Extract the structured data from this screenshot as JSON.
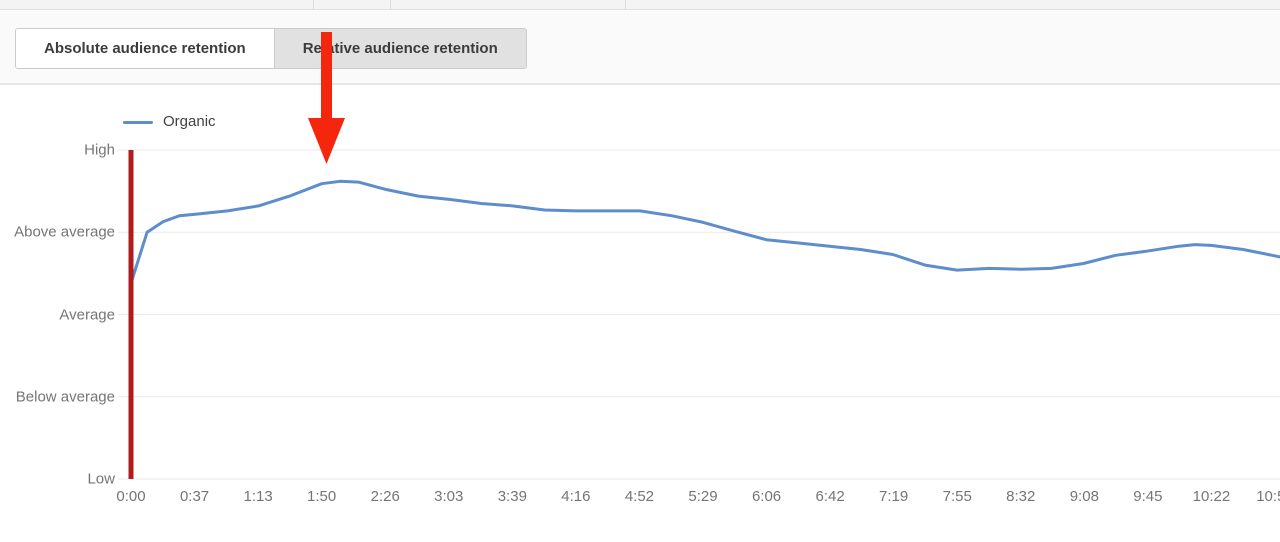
{
  "panel": {
    "tabs": [
      {
        "label": "Absolute audience retention",
        "selected": false
      },
      {
        "label": "Relative audience retention",
        "selected": true
      }
    ]
  },
  "legend": {
    "series_label": "Organic"
  },
  "chart_data": {
    "type": "line",
    "title": "Relative audience retention",
    "grid": true,
    "legend_position": "top-left",
    "y_tick_labels": [
      "High",
      "Above average",
      "Average",
      "Below average",
      "Low"
    ],
    "y_scale": {
      "Low": 0,
      "Below average": 1,
      "Average": 2,
      "Above average": 3,
      "High": 4
    },
    "x_tick_labels": [
      "0:00",
      "0:37",
      "1:13",
      "1:50",
      "2:26",
      "3:03",
      "3:39",
      "4:16",
      "4:52",
      "5:29",
      "6:06",
      "6:42",
      "7:19",
      "7:55",
      "8:32",
      "9:08",
      "9:45",
      "10:22",
      "10:58"
    ],
    "series": [
      {
        "name": "Organic",
        "color": "#5d8dca",
        "points": [
          [
            0.0,
            2.38
          ],
          [
            0.014,
            3.0
          ],
          [
            0.028,
            3.13
          ],
          [
            0.042,
            3.2
          ],
          [
            0.056,
            3.22
          ],
          [
            0.084,
            3.26
          ],
          [
            0.111,
            3.32
          ],
          [
            0.138,
            3.44
          ],
          [
            0.166,
            3.59
          ],
          [
            0.182,
            3.62
          ],
          [
            0.198,
            3.61
          ],
          [
            0.222,
            3.52
          ],
          [
            0.25,
            3.44
          ],
          [
            0.277,
            3.4
          ],
          [
            0.305,
            3.35
          ],
          [
            0.332,
            3.32
          ],
          [
            0.36,
            3.27
          ],
          [
            0.387,
            3.26
          ],
          [
            0.415,
            3.26
          ],
          [
            0.443,
            3.26
          ],
          [
            0.471,
            3.2
          ],
          [
            0.498,
            3.12
          ],
          [
            0.526,
            3.01
          ],
          [
            0.553,
            2.91
          ],
          [
            0.58,
            2.87
          ],
          [
            0.608,
            2.83
          ],
          [
            0.635,
            2.79
          ],
          [
            0.663,
            2.73
          ],
          [
            0.691,
            2.6
          ],
          [
            0.719,
            2.54
          ],
          [
            0.747,
            2.56
          ],
          [
            0.775,
            2.55
          ],
          [
            0.801,
            2.56
          ],
          [
            0.829,
            2.62
          ],
          [
            0.857,
            2.72
          ],
          [
            0.884,
            2.77
          ],
          [
            0.912,
            2.83
          ],
          [
            0.926,
            2.85
          ],
          [
            0.94,
            2.84
          ],
          [
            0.968,
            2.79
          ],
          [
            1.0,
            2.7
          ]
        ]
      }
    ],
    "playhead": {
      "time_label": "0:00",
      "color": "#b01c1c"
    }
  },
  "annotations": {
    "arrow": {
      "shape": "down-arrow",
      "color": "#f4270e",
      "points_at_time": "1:50",
      "points_at": "curve peak"
    }
  },
  "colors": {
    "line_blue": "#5d8dca",
    "playhead_red": "#b01c1c",
    "arrow_red": "#f4270e",
    "selected_tab_bg": "#e1e1e1",
    "axis_text": "#757575",
    "gridline": "#e9e9e9"
  }
}
